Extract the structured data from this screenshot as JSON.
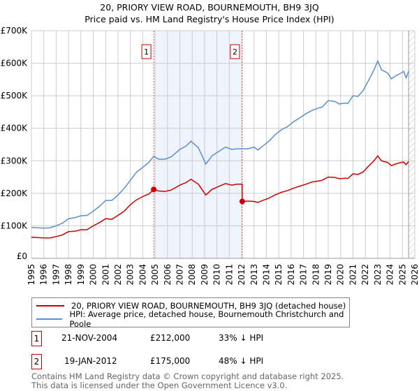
{
  "title": "20, PRIORY VIEW ROAD, BOURNEMOUTH, BH9 3JQ",
  "subtitle": "Price paid vs. HM Land Registry's House Price Index (HPI)",
  "chart_data": {
    "type": "line",
    "xlim": [
      1995,
      2026
    ],
    "ylim": [
      0,
      700000
    ],
    "yticks": [
      {
        "v": 0,
        "label": "£0"
      },
      {
        "v": 100000,
        "label": "£100K"
      },
      {
        "v": 200000,
        "label": "£200K"
      },
      {
        "v": 300000,
        "label": "£300K"
      },
      {
        "v": 400000,
        "label": "£400K"
      },
      {
        "v": 500000,
        "label": "£500K"
      },
      {
        "v": 600000,
        "label": "£600K"
      },
      {
        "v": 700000,
        "label": "£700K"
      }
    ],
    "xticks": [
      "1995",
      "1996",
      "1997",
      "1998",
      "1999",
      "2000",
      "2001",
      "2002",
      "2003",
      "2004",
      "2005",
      "2006",
      "2007",
      "2008",
      "2009",
      "2010",
      "2011",
      "2012",
      "2013",
      "2014",
      "2015",
      "2016",
      "2017",
      "2018",
      "2019",
      "2020",
      "2021",
      "2022",
      "2023",
      "2024",
      "2025",
      "2026"
    ],
    "grid": true,
    "shaded_range": [
      2004.89,
      2012.05
    ],
    "forecast_hatch_from": 2025.5,
    "series": [
      {
        "name": "20, PRIORY VIEW ROAD, BOURNEMOUTH, BH9 3JQ (detached house)",
        "color": "#cc0000",
        "x": [
          1995,
          1996,
          1996.5,
          1997,
          1997.5,
          1998,
          1998.5,
          1999,
          1999.5,
          2000,
          2000.5,
          2001,
          2001.5,
          2002,
          2002.5,
          2003,
          2003.5,
          2004,
          2004.5,
          2004.89,
          2005.3,
          2005.8,
          2006.3,
          2007,
          2007.5,
          2007.9,
          2008.5,
          2009.1,
          2009.6,
          2010.2,
          2010.7,
          2011.2,
          2011.6,
          2012.04,
          2012.05,
          2012.5,
          2013,
          2013.3,
          2013.7,
          2014.2,
          2014.7,
          2015.2,
          2015.7,
          2016.2,
          2016.7,
          2017.2,
          2017.7,
          2018.2,
          2018.5,
          2019,
          2019.5,
          2019.9,
          2020.3,
          2020.6,
          2021,
          2021.4,
          2021.8,
          2022.3,
          2022.7,
          2023,
          2023.3,
          2023.8,
          2024.1,
          2024.5,
          2024.9,
          2025.1,
          2025.3,
          2025.5
        ],
        "y": [
          65000,
          63000,
          63000,
          67000,
          72000,
          82000,
          83000,
          88000,
          88000,
          100000,
          110000,
          122000,
          120000,
          132000,
          145000,
          165000,
          180000,
          190000,
          198000,
          212000,
          207000,
          206000,
          210000,
          225000,
          233000,
          243000,
          228000,
          195000,
          212000,
          222000,
          230000,
          225000,
          228000,
          228000,
          175000,
          176000,
          175000,
          172000,
          178000,
          185000,
          195000,
          203000,
          208000,
          216000,
          222000,
          228000,
          235000,
          238000,
          240000,
          250000,
          249000,
          245000,
          246000,
          246000,
          260000,
          258000,
          265000,
          285000,
          300000,
          315000,
          300000,
          295000,
          285000,
          291000,
          295000,
          296000,
          288000,
          298000
        ]
      },
      {
        "name": "HPI: Average price, detached house, Bournemouth Christchurch and Poole",
        "color": "#5b8fd0",
        "x": [
          1995,
          1996,
          1996.5,
          1997,
          1997.5,
          1998,
          1998.5,
          1999,
          1999.5,
          2000,
          2000.5,
          2001,
          2001.5,
          2002,
          2002.5,
          2003,
          2003.5,
          2004,
          2004.5,
          2004.89,
          2005.3,
          2005.8,
          2006.3,
          2007,
          2007.5,
          2007.9,
          2008.5,
          2009.1,
          2009.6,
          2010.2,
          2010.7,
          2011.2,
          2011.6,
          2012.05,
          2012.5,
          2013,
          2013.3,
          2013.7,
          2014.2,
          2014.7,
          2015.2,
          2015.7,
          2016.2,
          2016.7,
          2017.2,
          2017.7,
          2018.2,
          2018.5,
          2019,
          2019.5,
          2019.9,
          2020.3,
          2020.6,
          2021,
          2021.4,
          2021.8,
          2022.3,
          2022.7,
          2023,
          2023.3,
          2023.8,
          2024.1,
          2024.5,
          2024.9,
          2025.1,
          2025.3,
          2025.5
        ],
        "y": [
          95000,
          93000,
          94000,
          100000,
          108000,
          122000,
          125000,
          131000,
          132000,
          145000,
          160000,
          178000,
          178000,
          195000,
          215000,
          240000,
          265000,
          280000,
          295000,
          314000,
          305000,
          305000,
          312000,
          335000,
          345000,
          360000,
          340000,
          290000,
          315000,
          330000,
          342000,
          335000,
          337000,
          337000,
          337000,
          342000,
          333000,
          345000,
          360000,
          380000,
          395000,
          405000,
          420000,
          432000,
          445000,
          455000,
          462000,
          465000,
          485000,
          483000,
          475000,
          477000,
          477000,
          500000,
          498000,
          515000,
          550000,
          580000,
          607000,
          580000,
          570000,
          552000,
          562000,
          570000,
          575000,
          555000,
          575000
        ]
      }
    ],
    "sales": [
      {
        "id": "1",
        "x": 2004.89,
        "y": 212000,
        "date": "21-NOV-2004",
        "price": "£212,000",
        "hpi": "33% ↓ HPI"
      },
      {
        "id": "2",
        "x": 2012.05,
        "y": 175000,
        "date": "19-JAN-2012",
        "price": "£175,000",
        "hpi": "48% ↓ HPI"
      }
    ]
  },
  "footer": {
    "line1": "Contains HM Land Registry data © Crown copyright and database right 2025.",
    "line2": "This data is licensed under the Open Government Licence v3.0."
  }
}
